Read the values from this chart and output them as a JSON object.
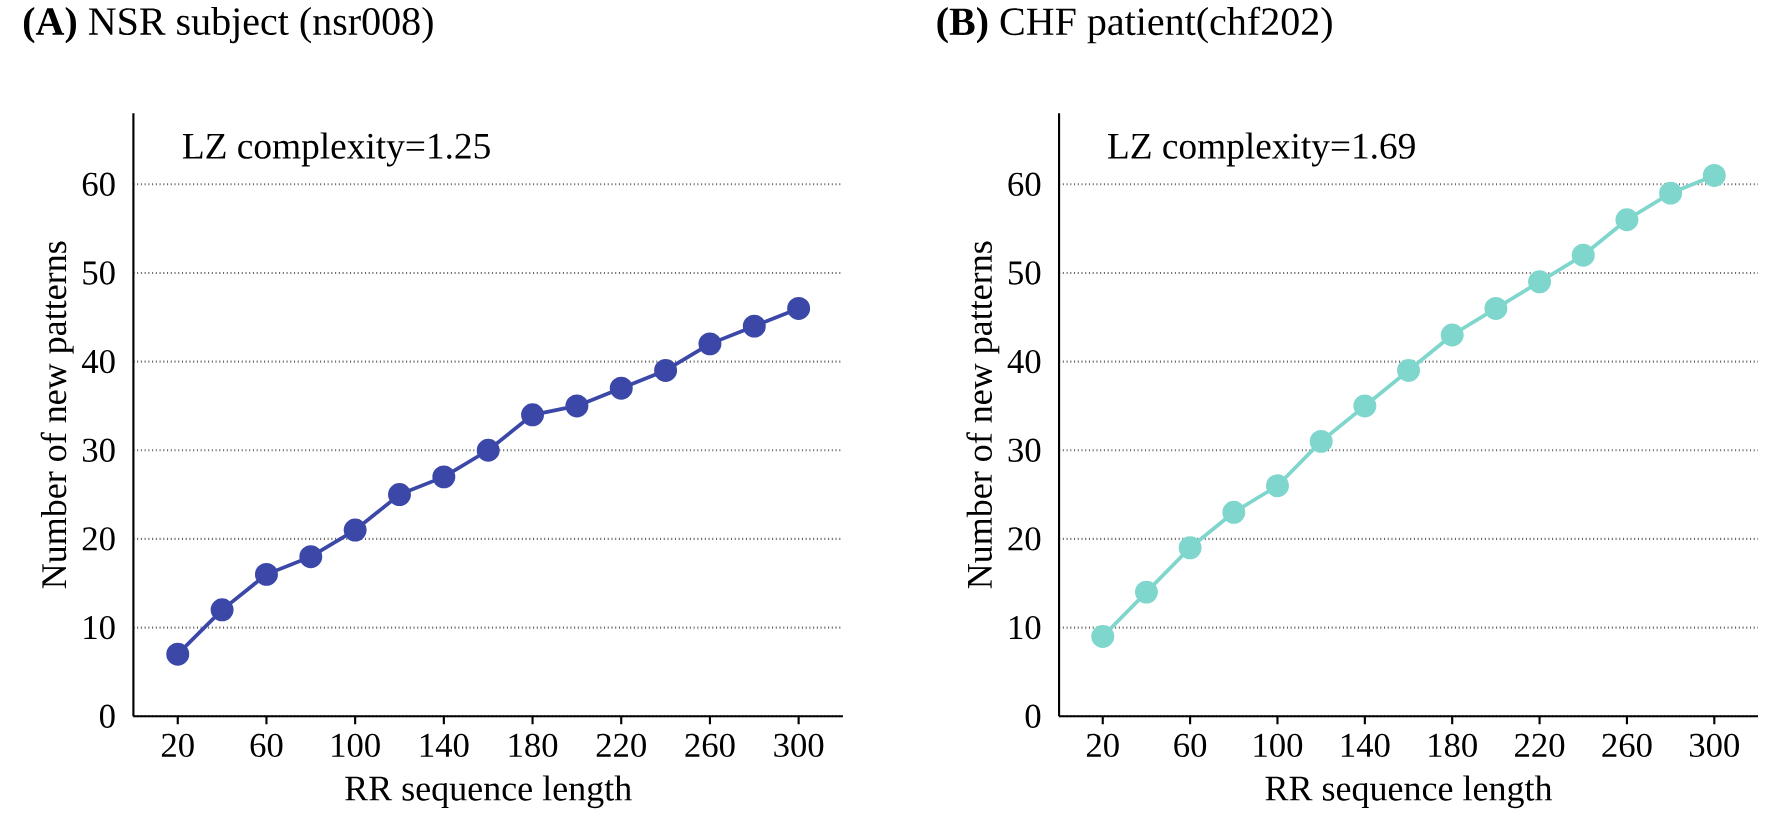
{
  "chart_data": [
    {
      "type": "line",
      "title": "**(A)**   NSR subject (nsr008)",
      "xlabel": "RR sequence length",
      "ylabel": "Number of new patterns",
      "annotations": [
        "LZ complexity=1.25"
      ],
      "x": [
        20,
        40,
        60,
        80,
        100,
        120,
        140,
        160,
        180,
        200,
        220,
        240,
        260,
        280,
        300
      ],
      "series": [
        {
          "color": "#3b48a8",
          "values": [
            7,
            12,
            16,
            18,
            21,
            25,
            27,
            30,
            34,
            35,
            37,
            39,
            42,
            44,
            46
          ]
        }
      ],
      "xlim": [
        0,
        320
      ],
      "ylim": [
        0,
        68
      ],
      "xticks": [
        20,
        60,
        100,
        140,
        180,
        220,
        260,
        300
      ],
      "yticks": [
        0,
        10,
        20,
        30,
        40,
        50,
        60
      ],
      "grid": "y",
      "marker": "circle",
      "line_style": "solid"
    },
    {
      "type": "line",
      "title": "**(B)**   CHF patient(chf202)",
      "xlabel": "RR sequence length",
      "ylabel": "Number of new patterns",
      "annotations": [
        "LZ complexity=1.69"
      ],
      "x": [
        20,
        40,
        60,
        80,
        100,
        120,
        140,
        160,
        180,
        200,
        220,
        240,
        260,
        280,
        300
      ],
      "series": [
        {
          "color": "#7fd6cc",
          "values": [
            9,
            14,
            19,
            23,
            26,
            31,
            35,
            39,
            43,
            46,
            49,
            52,
            56,
            59,
            61
          ]
        }
      ],
      "xlim": [
        0,
        320
      ],
      "ylim": [
        0,
        68
      ],
      "xticks": [
        20,
        60,
        100,
        140,
        180,
        220,
        260,
        300
      ],
      "yticks": [
        0,
        10,
        20,
        30,
        40,
        50,
        60
      ],
      "grid": "y",
      "marker": "circle",
      "line_style": "solid"
    }
  ]
}
